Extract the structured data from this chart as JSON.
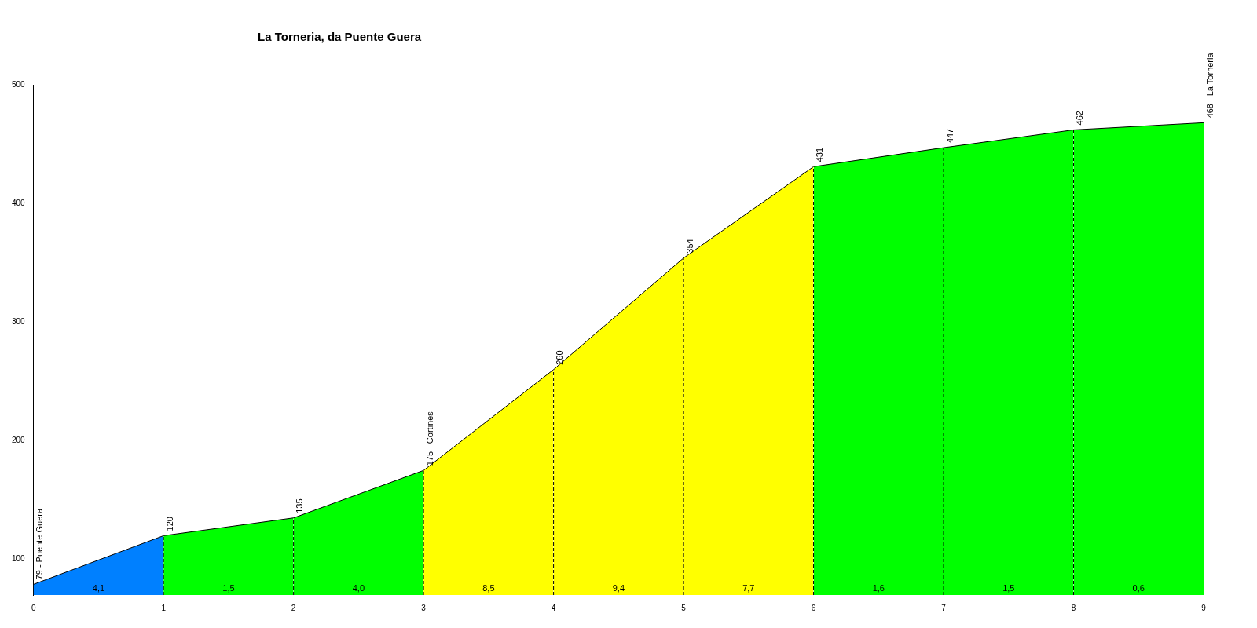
{
  "chart_data": {
    "type": "area",
    "title": "La Torneria, da Puente Guera",
    "xlim": [
      0,
      9
    ],
    "xticks": [
      0,
      1,
      2,
      3,
      4,
      5,
      6,
      7,
      8,
      9
    ],
    "ylim": [
      70,
      500
    ],
    "yticks": [
      100,
      200,
      300,
      400,
      500
    ],
    "grid": false,
    "legend": false,
    "marker": "none",
    "series": [
      {
        "color": "#0080ff",
        "x": [
          0,
          1
        ],
        "values": [
          79,
          120
        ]
      },
      {
        "color": "#00ff00",
        "x": [
          1,
          2
        ],
        "values": [
          120,
          135
        ]
      },
      {
        "color": "#00ff00",
        "x": [
          2,
          3
        ],
        "values": [
          135,
          175
        ]
      },
      {
        "color": "#ffff00",
        "x": [
          3,
          4
        ],
        "values": [
          175,
          260
        ]
      },
      {
        "color": "#ffff00",
        "x": [
          4,
          5
        ],
        "values": [
          260,
          354
        ]
      },
      {
        "color": "#ffff00",
        "x": [
          5,
          6
        ],
        "values": [
          354,
          431
        ]
      },
      {
        "color": "#00ff00",
        "x": [
          6,
          7
        ],
        "values": [
          431,
          447
        ]
      },
      {
        "color": "#00ff00",
        "x": [
          7,
          8
        ],
        "values": [
          447,
          462
        ]
      },
      {
        "color": "#00ff00",
        "x": [
          8,
          9
        ],
        "values": [
          462,
          468
        ]
      }
    ],
    "ref_lines": [
      {
        "axis": "x",
        "value": 1,
        "line_style": "dashed"
      },
      {
        "axis": "x",
        "value": 2,
        "line_style": "dashed"
      },
      {
        "axis": "x",
        "value": 3,
        "line_style": "dashed"
      },
      {
        "axis": "x",
        "value": 4,
        "line_style": "dashed"
      },
      {
        "axis": "x",
        "value": 5,
        "line_style": "dashed"
      },
      {
        "axis": "x",
        "value": 6,
        "line_style": "dashed"
      },
      {
        "axis": "x",
        "value": 7,
        "line_style": "dashed"
      },
      {
        "axis": "x",
        "value": 8,
        "line_style": "dashed"
      }
    ],
    "annotations": [
      {
        "text": "79 - Puente Guera",
        "x": 0,
        "y": 79
      },
      {
        "text": "120",
        "x": 1,
        "y": 120
      },
      {
        "text": "135",
        "x": 2,
        "y": 135
      },
      {
        "text": "175 - Cortines",
        "x": 3,
        "y": 175
      },
      {
        "text": "260",
        "x": 4,
        "y": 260
      },
      {
        "text": "354",
        "x": 5,
        "y": 354
      },
      {
        "text": "431",
        "x": 6,
        "y": 431
      },
      {
        "text": "447",
        "x": 7,
        "y": 447
      },
      {
        "text": "462",
        "x": 8,
        "y": 462
      },
      {
        "text": "468 - La Torneria",
        "x": 9,
        "y": 468
      },
      "4,1",
      "1,5",
      "4,0",
      "8,5",
      "9,4",
      "7,7",
      "1,6",
      "1,5",
      "0,6"
    ]
  }
}
